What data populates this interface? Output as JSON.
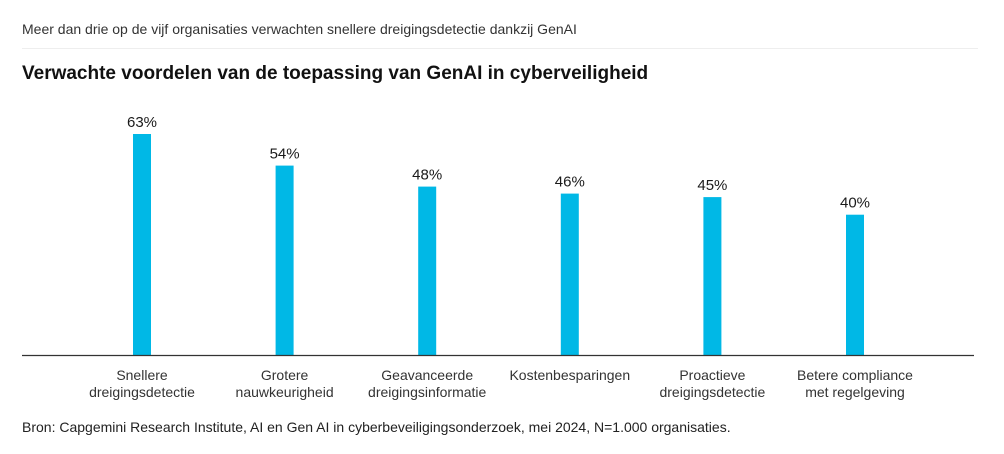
{
  "header": {
    "subtitle": "Meer dan drie op de vijf organisaties verwachten snellere dreigingsdetectie dankzij GenAI",
    "title": "Verwachte voordelen van de toepassing van GenAI in cyberveiligheid"
  },
  "footer": {
    "source": "Bron: Capgemini Research Institute, AI en Gen AI in cyberbeveiligingsonderzoek, mei 2024, N=1.000 organisaties."
  },
  "colors": {
    "bar": "#00b8e6",
    "axis": "#333333",
    "text": "#1a1a1a"
  },
  "chart_data": {
    "type": "bar",
    "categories": [
      [
        "Snellere",
        "dreigingsdetectie"
      ],
      [
        "Grotere",
        "nauwkeurigheid"
      ],
      [
        "Geavanceerde",
        "dreigingsinformatie"
      ],
      [
        "Kostenbesparingen"
      ],
      [
        "Proactieve",
        "dreigingsdetectie"
      ],
      [
        "Betere compliance",
        "met regelgeving"
      ]
    ],
    "values": [
      63,
      54,
      48,
      46,
      45,
      40
    ],
    "data_labels": [
      "63%",
      "54%",
      "48%",
      "46%",
      "45%",
      "40%"
    ],
    "unit": "%",
    "ylim": [
      0,
      63
    ],
    "grid": false,
    "legend": "none"
  }
}
